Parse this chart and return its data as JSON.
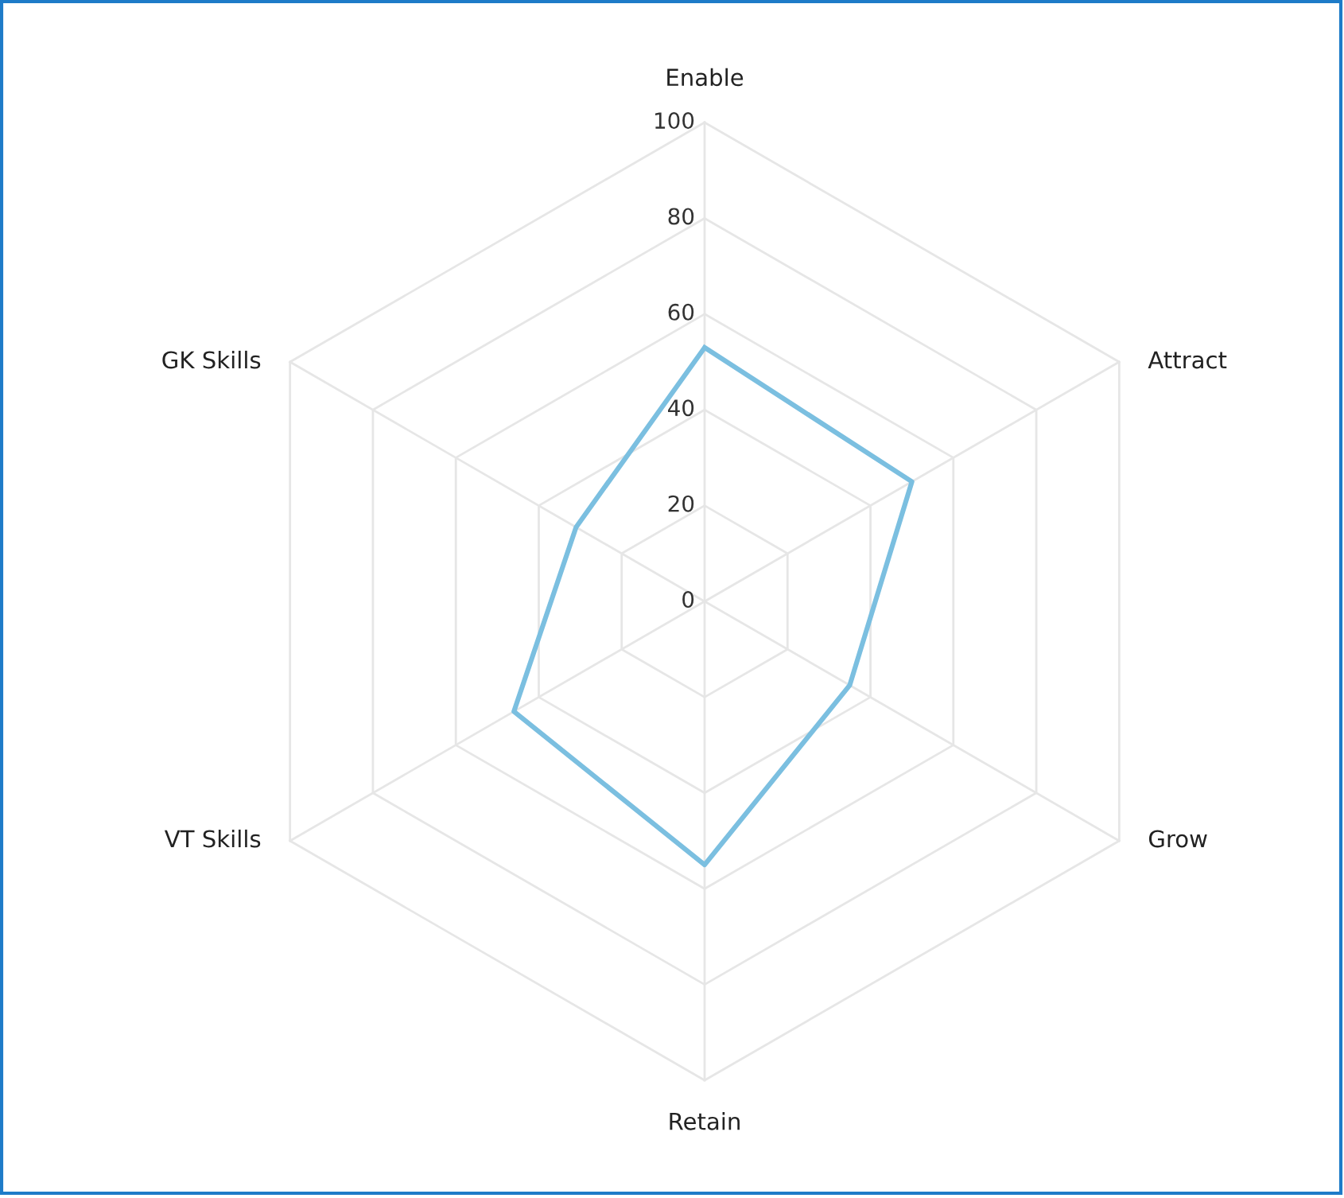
{
  "chart_data": {
    "type": "radar",
    "categories": [
      "Enable",
      "Attract",
      "Grow",
      "Retain",
      "VT Skills",
      "GK Skills"
    ],
    "series": [
      {
        "color": "#7bbfe0",
        "values": [
          53,
          50,
          35,
          55,
          46,
          31
        ]
      }
    ],
    "ylim": [
      0,
      100
    ],
    "yticks": [
      0,
      20,
      40,
      60,
      80,
      100
    ],
    "grid": true,
    "marker": "none",
    "line_style": "solid"
  }
}
